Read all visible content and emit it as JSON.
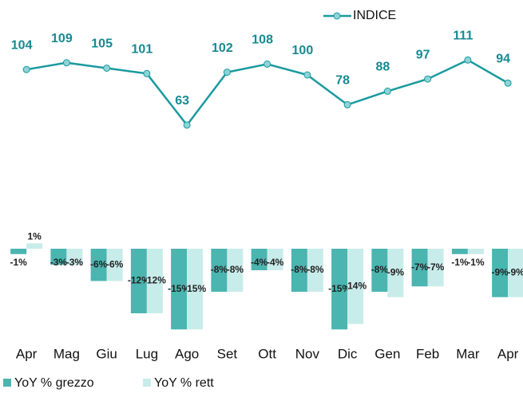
{
  "chart_data": {
    "type": "combo",
    "categories": [
      "Apr",
      "Mag",
      "Giu",
      "Lug",
      "Ago",
      "Set",
      "Ott",
      "Nov",
      "Dic",
      "Gen",
      "Feb",
      "Mar",
      "Apr"
    ],
    "ylim": [
      -16,
      4
    ],
    "y2lim": [
      40,
      120
    ],
    "series": [
      {
        "name": "INDICE",
        "type": "line",
        "axis": "y2",
        "color": "#1a9aa0",
        "values": [
          104,
          109,
          105,
          101,
          63,
          102,
          108,
          100,
          78,
          88,
          97,
          111,
          94
        ]
      },
      {
        "name": "YoY % grezzo",
        "type": "bar",
        "color": "#4bb5b0",
        "values": [
          -1,
          -3,
          -6,
          -12,
          -15,
          -8,
          -4,
          -8,
          -15,
          -8,
          -7,
          -1,
          -9
        ],
        "value_labels": [
          "-1%",
          "-3%",
          "-6%",
          "-12%",
          "-15%",
          "-8%",
          "-4%",
          "-8%",
          "-15%",
          "-8%",
          "-7%",
          "-1%",
          "-9%"
        ]
      },
      {
        "name": "YoY % rett",
        "type": "bar",
        "color": "#c8ecea",
        "values": [
          1,
          -3,
          -6,
          -12,
          -15,
          -8,
          -4,
          -8,
          -14,
          -9,
          -7,
          -1,
          -9
        ],
        "value_labels": [
          "1%",
          "-3%",
          "-6%",
          "-12%",
          "-15%",
          "-8%",
          "-4%",
          "-8%",
          "-14%",
          "-9%",
          "-7%",
          "-1%",
          "-9%"
        ]
      }
    ]
  }
}
